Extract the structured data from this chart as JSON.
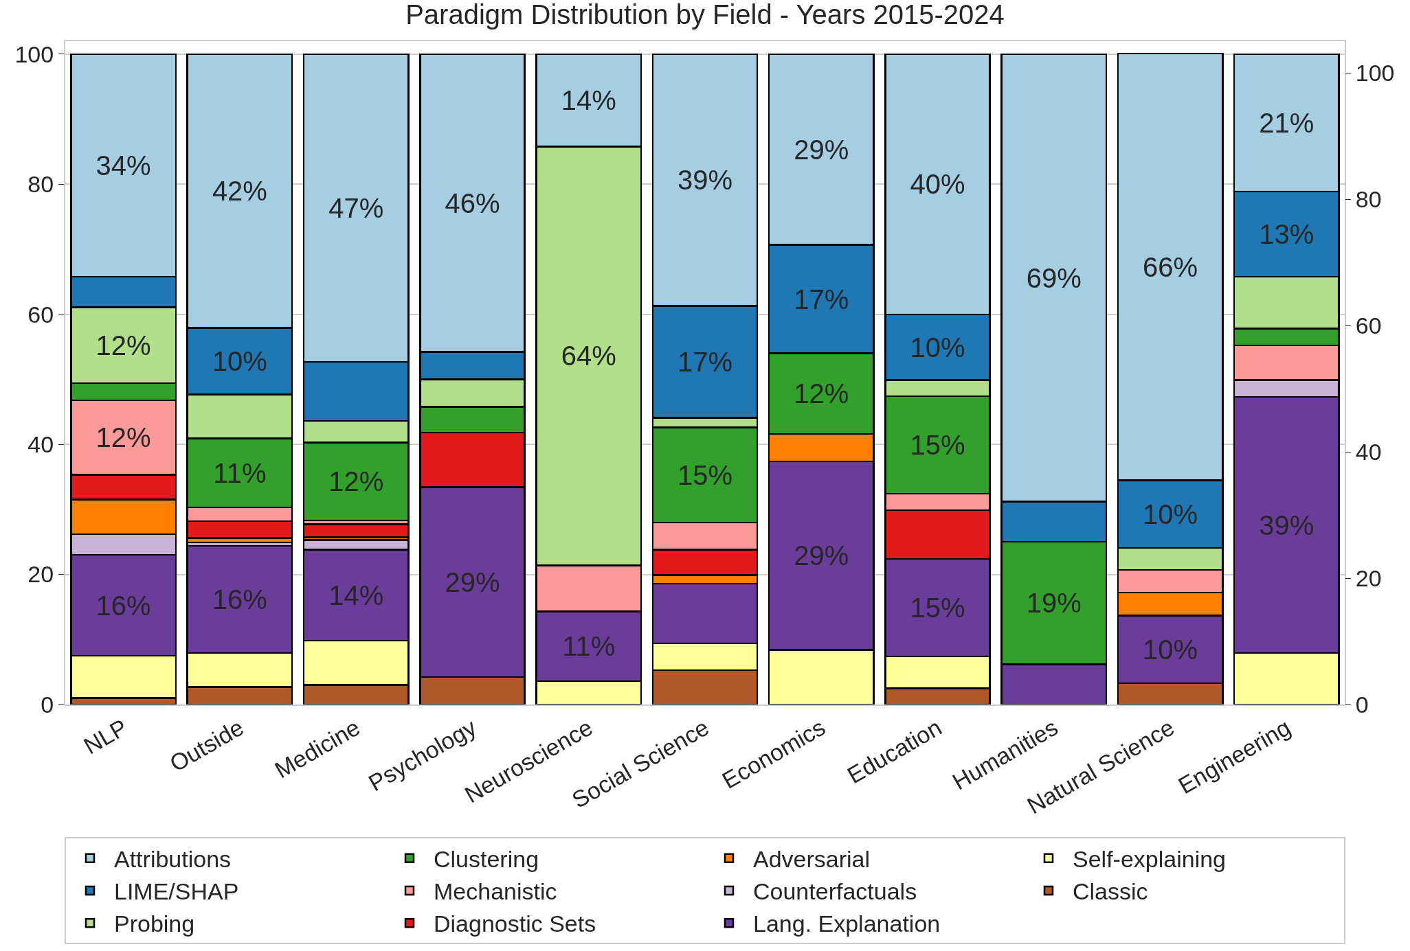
{
  "chart_data": {
    "type": "bar",
    "stacked": true,
    "title": "Paradigm Distribution by Field - Years 2015-2024",
    "categories": [
      "NLP",
      "Outside",
      "Medicine",
      "Psychology",
      "Neuroscience",
      "Social Science",
      "Economics",
      "Education",
      "Humanities",
      "Natural Science",
      "Engineering"
    ],
    "ylim": [
      0,
      102
    ],
    "yticks": [
      0,
      20,
      40,
      60,
      80,
      100
    ],
    "y2lim": [
      0,
      105
    ],
    "y2ticks": [
      0,
      20,
      40,
      60,
      80,
      100
    ],
    "grid": "y",
    "legend": "bottom",
    "series": [
      {
        "name": "Classic",
        "color": "#b15928",
        "values": [
          1.0,
          2.7,
          3.0,
          4.2,
          0,
          5.3,
          0,
          2.5,
          0,
          3.3,
          0
        ],
        "value_labels": [
          null,
          null,
          null,
          null,
          null,
          null,
          null,
          null,
          null,
          null,
          null
        ]
      },
      {
        "name": "Self-explaining",
        "color": "#ffff99",
        "values": [
          6.5,
          5.2,
          6.8,
          0,
          3.6,
          4.1,
          8.4,
          4.9,
          0,
          0,
          7.9
        ],
        "value_labels": [
          null,
          null,
          null,
          null,
          null,
          null,
          null,
          null,
          null,
          null,
          null
        ]
      },
      {
        "name": "Lang. Explanation",
        "color": "#6a3d9a",
        "values": [
          15.5,
          16.5,
          14.0,
          29.2,
          10.7,
          9.2,
          29.0,
          15.0,
          6.2,
          10.4,
          39.4
        ],
        "value_labels": [
          "16%",
          "16%",
          "14%",
          "29%",
          "11%",
          null,
          "29%",
          "15%",
          null,
          "10%",
          "39%"
        ]
      },
      {
        "name": "Counterfactuals",
        "color": "#cab2d6",
        "values": [
          3.2,
          0.5,
          1.5,
          0,
          0,
          0,
          0,
          0,
          0,
          0,
          2.6
        ],
        "value_labels": [
          null,
          null,
          null,
          null,
          null,
          null,
          null,
          null,
          null,
          null,
          null
        ]
      },
      {
        "name": "Adversarial",
        "color": "#ff7f00",
        "values": [
          5.3,
          0.7,
          0.4,
          0,
          0,
          1.3,
          4.2,
          0,
          0,
          3.5,
          0
        ],
        "value_labels": [
          null,
          null,
          null,
          null,
          null,
          null,
          null,
          null,
          null,
          null,
          null
        ]
      },
      {
        "name": "Diagnostic Sets",
        "color": "#e31a1c",
        "values": [
          3.8,
          2.6,
          2.0,
          8.4,
          0,
          3.9,
          0,
          7.5,
          0,
          0,
          0
        ],
        "value_labels": [
          null,
          null,
          null,
          null,
          null,
          null,
          null,
          null,
          null,
          null,
          null
        ]
      },
      {
        "name": "Mechanistic",
        "color": "#fb9a99",
        "values": [
          11.5,
          2.1,
          0.6,
          0,
          7.1,
          4.2,
          0,
          2.5,
          0,
          3.5,
          5.3
        ],
        "value_labels": [
          "12%",
          null,
          null,
          null,
          null,
          null,
          null,
          null,
          null,
          null,
          null
        ]
      },
      {
        "name": "Clustering",
        "color": "#33a02c",
        "values": [
          2.6,
          10.6,
          12.0,
          4.0,
          0,
          14.6,
          12.4,
          15.0,
          18.8,
          0,
          2.6
        ],
        "value_labels": [
          null,
          "11%",
          "12%",
          null,
          null,
          "15%",
          "12%",
          "15%",
          "19%",
          null,
          null
        ]
      },
      {
        "name": "Probing",
        "color": "#b2df8a",
        "values": [
          11.7,
          6.8,
          3.3,
          4.2,
          64.4,
          1.5,
          0,
          2.5,
          0,
          3.4,
          8.0
        ],
        "value_labels": [
          "12%",
          null,
          null,
          null,
          "64%",
          null,
          null,
          null,
          null,
          null,
          null
        ]
      },
      {
        "name": "LIME/SHAP",
        "color": "#1f78b4",
        "values": [
          4.7,
          10.2,
          9.1,
          4.2,
          0,
          17.2,
          16.7,
          10.1,
          6.2,
          10.4,
          13.1
        ],
        "value_labels": [
          null,
          "10%",
          null,
          null,
          null,
          "17%",
          "17%",
          "10%",
          null,
          "10%",
          "13%"
        ]
      },
      {
        "name": "Attributions",
        "color": "#a6cee3",
        "values": [
          34.2,
          42.1,
          47.3,
          45.8,
          14.2,
          38.7,
          29.3,
          40.0,
          68.8,
          65.6,
          21.1
        ],
        "value_labels": [
          "34%",
          "42%",
          "47%",
          "46%",
          "14%",
          "39%",
          "29%",
          "40%",
          "69%",
          "66%",
          "21%"
        ]
      }
    ]
  }
}
